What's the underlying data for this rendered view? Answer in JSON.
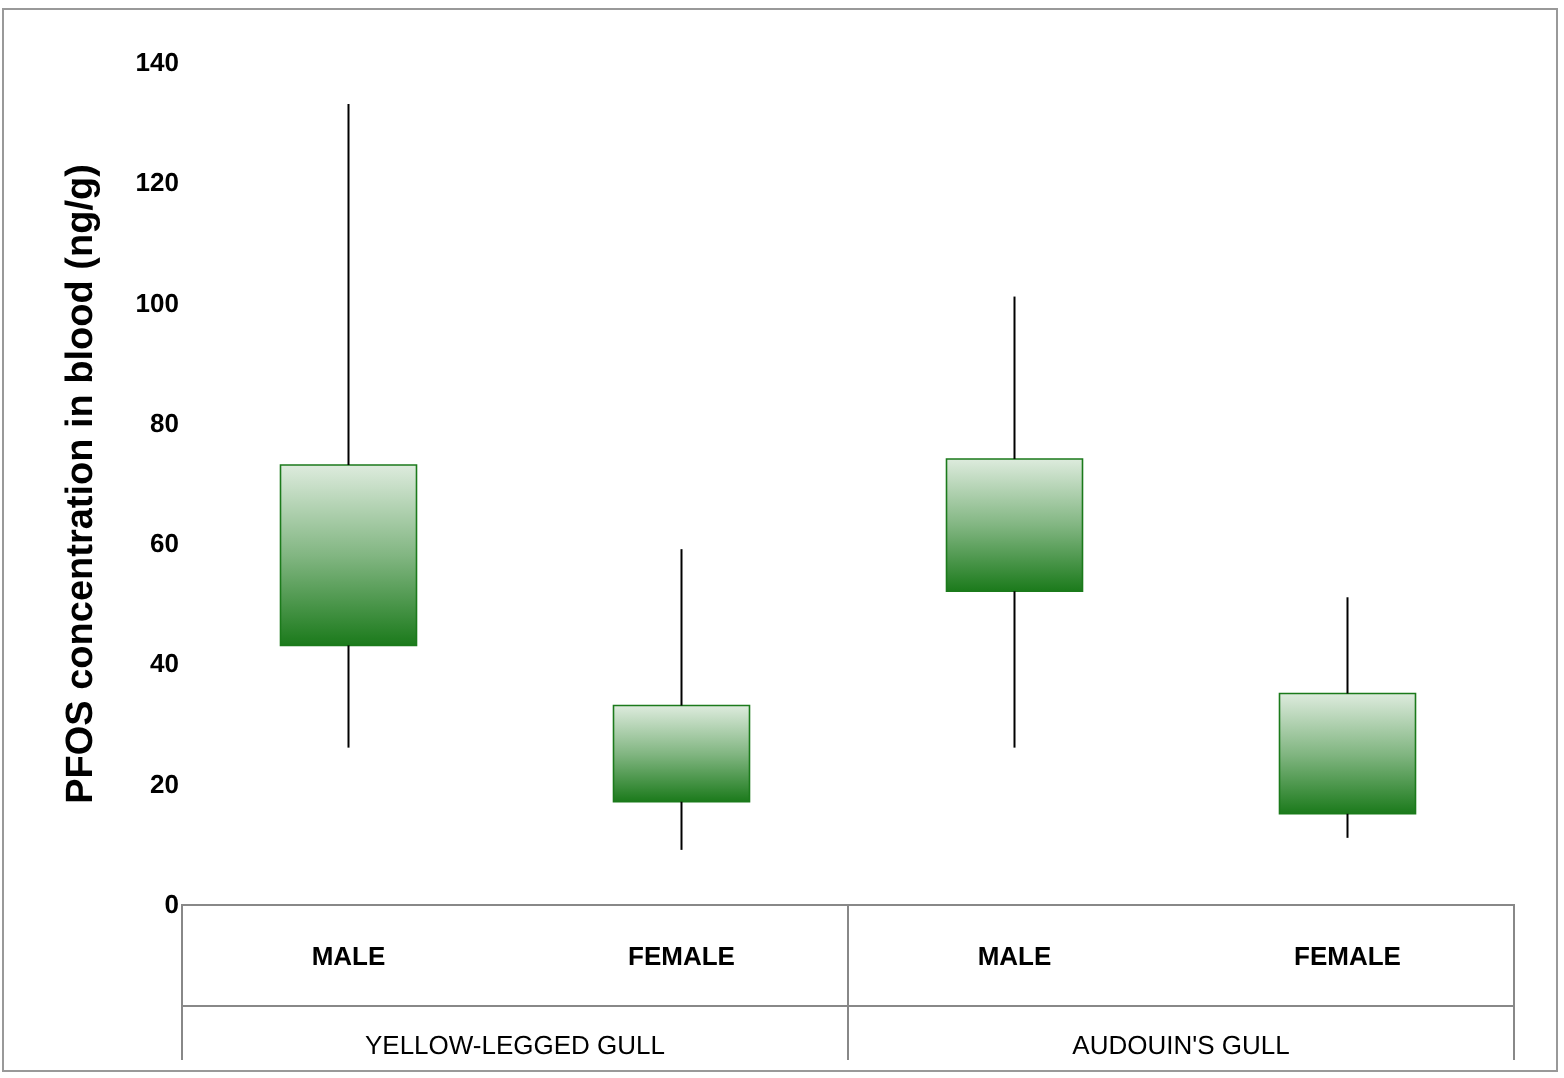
{
  "chart_data": {
    "type": "candlestick",
    "ylabel": "PFOS concentration in blood (ng/g)",
    "categories": [
      "MALE",
      "FEMALE",
      "MALE",
      "FEMALE"
    ],
    "ohlc": [
      [
        43,
        133,
        26,
        73
      ],
      [
        17,
        59,
        9,
        33
      ],
      [
        52,
        101,
        26,
        74
      ],
      [
        15,
        51,
        11,
        35
      ]
    ],
    "color": "#1b7a1b",
    "ylim": [
      0,
      140
    ],
    "yticks": [
      0,
      20,
      40,
      60,
      80,
      100,
      120,
      140
    ],
    "grid": false,
    "annotations": [
      "YELLOW-LEGGED GULL",
      "AUDOUIN'S GULL"
    ]
  }
}
